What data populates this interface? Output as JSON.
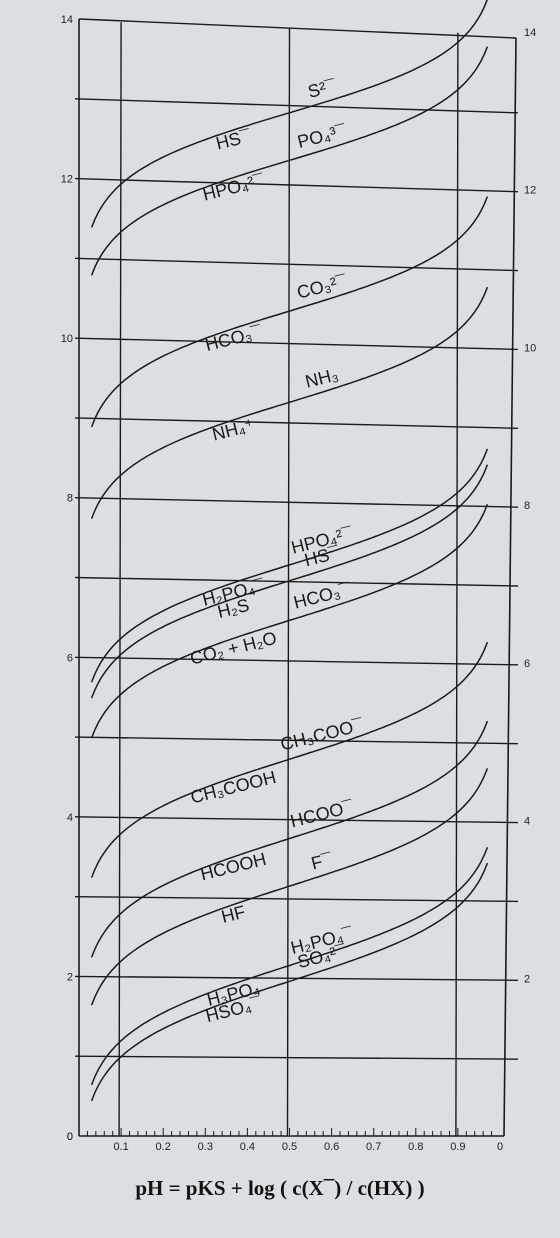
{
  "formula": "pH = pKS + log ( c(X¯) / c(HX) )",
  "chart_data": {
    "type": "line",
    "title": "",
    "xlabel": "pH = pKS + log ( c(X¯) / c(HX) )",
    "ylabel": "",
    "xlim": [
      0,
      1
    ],
    "ylim": [
      0,
      14
    ],
    "left_ticks": [
      "0",
      "2",
      "4",
      "6",
      "8",
      "10",
      "12",
      "14"
    ],
    "right_ticks": [
      "2",
      "4",
      "6",
      "8",
      "10",
      "12",
      "14"
    ],
    "x_ticks": [
      "0.1",
      "0.2",
      "0.3",
      "0.4",
      "0.5",
      "0.6",
      "0.7",
      "0.8",
      "0.9",
      "0"
    ],
    "grid": true,
    "colors": {
      "line": "#1a1a1a",
      "grid": "#1a1a1a",
      "background": "#dcdfe2"
    },
    "series": [
      {
        "pKs": 12.9,
        "acid_label": "HS¯",
        "base_label": "S²¯"
      },
      {
        "pKs": 12.3,
        "acid_label": "HPO₄²¯",
        "base_label": "PO₄³¯"
      },
      {
        "pKs": 10.4,
        "acid_label": "HCO₃¯",
        "base_label": "CO₃²¯"
      },
      {
        "pKs": 9.25,
        "acid_label": "NH₄⁺",
        "base_label": "NH₃"
      },
      {
        "pKs": 7.2,
        "acid_label": "H₂PO₄¯",
        "base_label": "HPO₄²¯"
      },
      {
        "pKs": 7.0,
        "acid_label": "H₂S",
        "base_label": "HS¯"
      },
      {
        "pKs": 6.5,
        "acid_label": "CO₂ + H₂O",
        "base_label": "HCO₃¯"
      },
      {
        "pKs": 4.75,
        "acid_label": "CH₃COOH",
        "base_label": "CH₃COO¯"
      },
      {
        "pKs": 3.75,
        "acid_label": "HCOOH",
        "base_label": "HCOO¯"
      },
      {
        "pKs": 3.15,
        "acid_label": "HF",
        "base_label": "F¯"
      },
      {
        "pKs": 2.15,
        "acid_label": "H₃PO₄",
        "base_label": "H₂PO₄¯"
      },
      {
        "pKs": 1.95,
        "acid_label": "HSO₄¯",
        "base_label": "SO₄²¯"
      }
    ]
  }
}
